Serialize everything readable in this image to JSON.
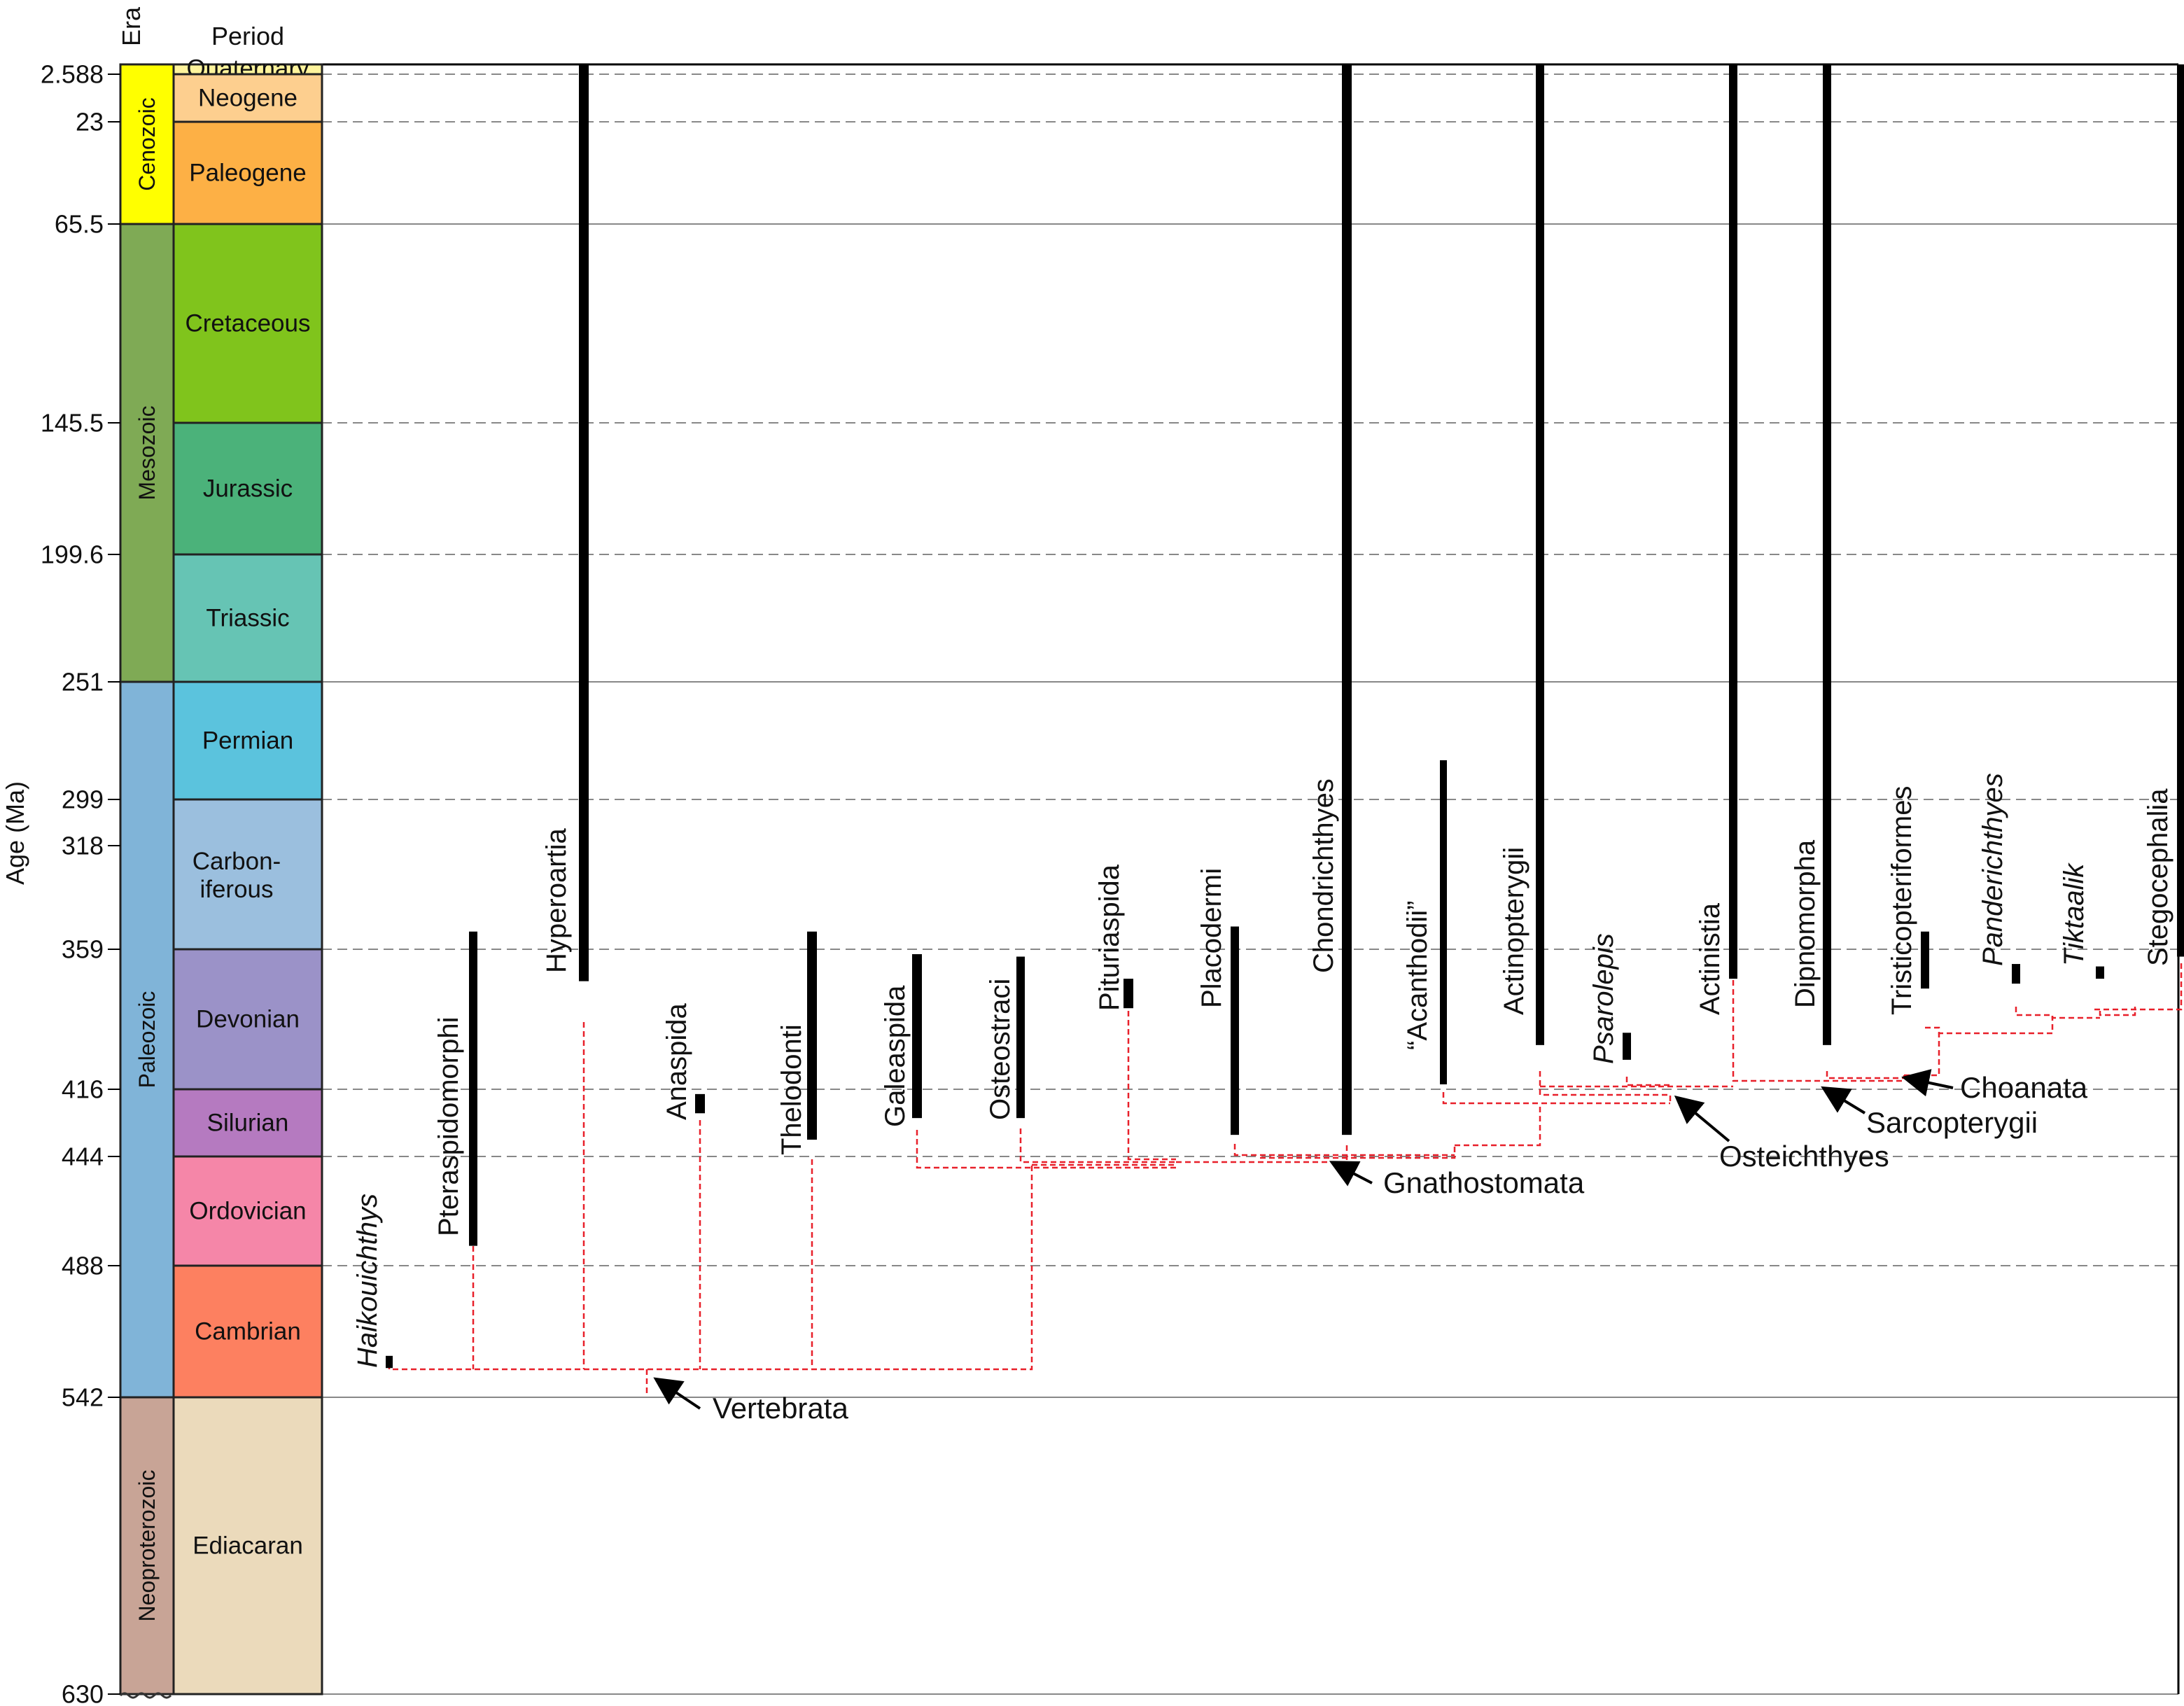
{
  "axis": {
    "label": "Age (Ma)",
    "era_header": "Era",
    "period_header": "Period",
    "ticks": [
      2.588,
      23,
      65.5,
      145.5,
      199.6,
      251,
      299,
      318,
      359,
      416,
      444,
      488,
      542,
      630
    ],
    "tick_labels": [
      "2.588",
      "23",
      "65.5",
      "145.5",
      "199.6",
      "251",
      "299",
      "318",
      "359",
      "416",
      "444",
      "488",
      "542",
      "630"
    ],
    "solid_lines": [
      0,
      65.5,
      251,
      542,
      630
    ],
    "dashed_lines": [
      2.588,
      23,
      145.5,
      199.6,
      299,
      359,
      416,
      444,
      488
    ]
  },
  "eras": [
    {
      "name": "Cenozoic",
      "start": 0,
      "end": 65.5,
      "color": "#FFFF00"
    },
    {
      "name": "Mesozoic",
      "start": 65.5,
      "end": 251,
      "color": "#7FAA55"
    },
    {
      "name": "Paleozoic",
      "start": 251,
      "end": 542,
      "color": "#80B4D8"
    },
    {
      "name": "Neoproterozoic",
      "start": 542,
      "end": 630,
      "color": "#C8A496"
    }
  ],
  "periods": [
    {
      "name": "Quaternary",
      "start": 0,
      "end": 2.588,
      "color": "#FFF49C"
    },
    {
      "name": "Neogene",
      "start": 2.588,
      "end": 23,
      "color": "#FDCF8F"
    },
    {
      "name": "Paleogene",
      "start": 23,
      "end": 65.5,
      "color": "#FDB045"
    },
    {
      "name": "Cretaceous",
      "start": 65.5,
      "end": 145.5,
      "color": "#80C41C"
    },
    {
      "name": "Jurassic",
      "start": 145.5,
      "end": 199.6,
      "color": "#4BB27A"
    },
    {
      "name": "Triassic",
      "start": 199.6,
      "end": 251,
      "color": "#66C4B4"
    },
    {
      "name": "Permian",
      "start": 251,
      "end": 299,
      "color": "#5BC3DD"
    },
    {
      "name": "Carbon-\niferous",
      "start": 299,
      "end": 359,
      "color": "#9BBFDE"
    },
    {
      "name": "Devonian",
      "start": 359,
      "end": 416,
      "color": "#9B92C8"
    },
    {
      "name": "Silurian",
      "start": 416,
      "end": 444,
      "color": "#B57AC0"
    },
    {
      "name": "Ordovician",
      "start": 444,
      "end": 488,
      "color": "#F586A8"
    },
    {
      "name": "Cambrian",
      "start": 488,
      "end": 542,
      "color": "#FD8060"
    },
    {
      "name": "Ediacaran",
      "start": 542,
      "end": 630,
      "color": "#EBDABB"
    }
  ],
  "taxa": [
    {
      "name": "Haikouichthys",
      "italic": true,
      "range": [
        525,
        530
      ]
    },
    {
      "name": "Pteraspidomorphi",
      "italic": false,
      "range": [
        352,
        480
      ]
    },
    {
      "name": "Hyperoartia",
      "italic": false,
      "range": [
        0,
        372
      ]
    },
    {
      "name": "Anaspida",
      "italic": false,
      "range": [
        418,
        426
      ]
    },
    {
      "name": "Thelodonti",
      "italic": false,
      "range": [
        352,
        437
      ]
    },
    {
      "name": "Galeaspida",
      "italic": false,
      "range": [
        361,
        428
      ]
    },
    {
      "name": "Osteostraci",
      "italic": false,
      "range": [
        362,
        428
      ]
    },
    {
      "name": "Pituriaspida",
      "italic": false,
      "range": [
        371,
        383
      ]
    },
    {
      "name": "Placodermi",
      "italic": false,
      "range": [
        350,
        435
      ]
    },
    {
      "name": "Chondrichthyes",
      "italic": false,
      "range": [
        0,
        435
      ]
    },
    {
      "name": "“Acanthodii”",
      "italic": false,
      "range": [
        283,
        414
      ]
    },
    {
      "name": "Actinopterygii",
      "italic": false,
      "range": [
        0,
        398
      ]
    },
    {
      "name": "Psarolepis",
      "italic": true,
      "range": [
        393,
        404
      ]
    },
    {
      "name": "Actinistia",
      "italic": false,
      "range": [
        0,
        371
      ]
    },
    {
      "name": "Dipnomorpha",
      "italic": false,
      "range": [
        0,
        398
      ]
    },
    {
      "name": "Tristicopteriformes",
      "italic": false,
      "range": [
        352,
        375
      ]
    },
    {
      "name": "Panderichthyes",
      "italic": true,
      "range": [
        365,
        373
      ]
    },
    {
      "name": "Tiktaalik",
      "italic": true,
      "range": [
        366,
        371
      ]
    },
    {
      "name": "Stegocephalia",
      "italic": false,
      "range": [
        0,
        362
      ]
    }
  ],
  "clades": [
    {
      "name": "Vertebrata"
    },
    {
      "name": "Gnathostomata"
    },
    {
      "name": "Osteichthyes"
    },
    {
      "name": "Sarcopterygii"
    },
    {
      "name": "Choanata"
    }
  ],
  "colors": {
    "range_bar": "#000000",
    "tree": "#E8202A",
    "grid": "#888888"
  }
}
